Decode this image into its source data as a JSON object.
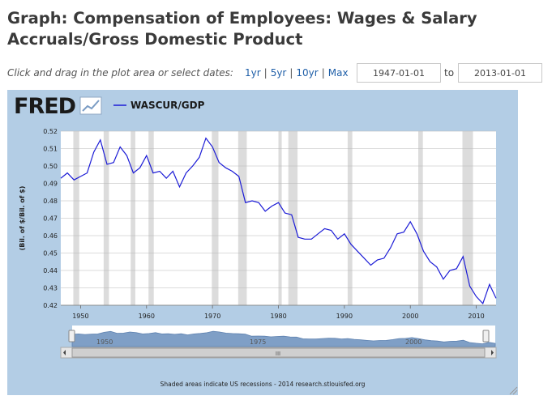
{
  "page": {
    "title": "Graph: Compensation of Employees: Wages & Salary Accruals/Gross Domestic Product"
  },
  "date_controls": {
    "instruction": "Click and drag in the plot area or select dates:",
    "ranges": [
      "1yr",
      "5yr",
      "10yr",
      "Max"
    ],
    "start_date": "1947-01-01",
    "to_label": "to",
    "end_date": "2013-01-01"
  },
  "graph": {
    "logo_text": "FRED",
    "footer_note": "Shaded areas indicate US recessions - 2014 research.stlouisfed.org",
    "navigator_labels": [
      "1950",
      "1975",
      "2000"
    ],
    "navigator_thumb": "III",
    "colors": {
      "panel_bg": "#b3cde5",
      "plot_bg": "#ffffff",
      "series": "#1c1cd6",
      "recession": "#dcdcdc",
      "grid": "#b8b8b8",
      "navigator_fill": "#7f9fc6"
    }
  },
  "chart_data": {
    "type": "line",
    "title": "",
    "xlabel": "",
    "ylabel": "(Bil. of $/Bil. of $)",
    "xlim": [
      1947,
      2013
    ],
    "ylim": [
      0.42,
      0.52
    ],
    "x_ticks": [
      1950,
      1960,
      1970,
      1980,
      1990,
      2000,
      2010
    ],
    "y_ticks": [
      0.42,
      0.43,
      0.44,
      0.45,
      0.46,
      0.47,
      0.48,
      0.49,
      0.5,
      0.51,
      0.52
    ],
    "y_tick_labels": [
      "0.42",
      "0.43",
      "0.44",
      "0.45",
      "0.46",
      "0.47",
      "0.48",
      "0.49",
      "0.50",
      "0.51",
      "0.52"
    ],
    "grid": true,
    "legend": "top-left",
    "recessions": [
      [
        1948.9,
        1949.8
      ],
      [
        1953.5,
        1954.3
      ],
      [
        1957.6,
        1958.3
      ],
      [
        1960.3,
        1961.1
      ],
      [
        1969.9,
        1970.9
      ],
      [
        1973.9,
        1975.2
      ],
      [
        1980.0,
        1980.5
      ],
      [
        1981.5,
        1982.9
      ],
      [
        1990.5,
        1991.2
      ],
      [
        2001.2,
        2001.9
      ],
      [
        2007.9,
        2009.5
      ]
    ],
    "series": [
      {
        "name": "WASCUR/GDP",
        "x": [
          1947,
          1948,
          1949,
          1950,
          1951,
          1952,
          1953,
          1954,
          1955,
          1956,
          1957,
          1958,
          1959,
          1960,
          1961,
          1962,
          1963,
          1964,
          1965,
          1966,
          1967,
          1968,
          1969,
          1970,
          1971,
          1972,
          1973,
          1974,
          1975,
          1976,
          1977,
          1978,
          1979,
          1980,
          1981,
          1982,
          1983,
          1984,
          1985,
          1986,
          1987,
          1988,
          1989,
          1990,
          1991,
          1992,
          1993,
          1994,
          1995,
          1996,
          1997,
          1998,
          1999,
          2000,
          2001,
          2002,
          2003,
          2004,
          2005,
          2006,
          2007,
          2008,
          2009,
          2010,
          2011,
          2012,
          2013
        ],
        "values": [
          0.493,
          0.496,
          0.492,
          0.494,
          0.496,
          0.508,
          0.515,
          0.501,
          0.502,
          0.511,
          0.506,
          0.496,
          0.499,
          0.506,
          0.496,
          0.497,
          0.493,
          0.497,
          0.488,
          0.496,
          0.5,
          0.505,
          0.516,
          0.511,
          0.502,
          0.499,
          0.497,
          0.494,
          0.479,
          0.48,
          0.479,
          0.474,
          0.477,
          0.479,
          0.473,
          0.472,
          0.459,
          0.458,
          0.458,
          0.461,
          0.464,
          0.463,
          0.458,
          0.461,
          0.455,
          0.451,
          0.447,
          0.443,
          0.446,
          0.447,
          0.453,
          0.461,
          0.462,
          0.468,
          0.461,
          0.451,
          0.445,
          0.442,
          0.435,
          0.44,
          0.441,
          0.448,
          0.431,
          0.425,
          0.421,
          0.432,
          0.424
        ]
      }
    ]
  }
}
